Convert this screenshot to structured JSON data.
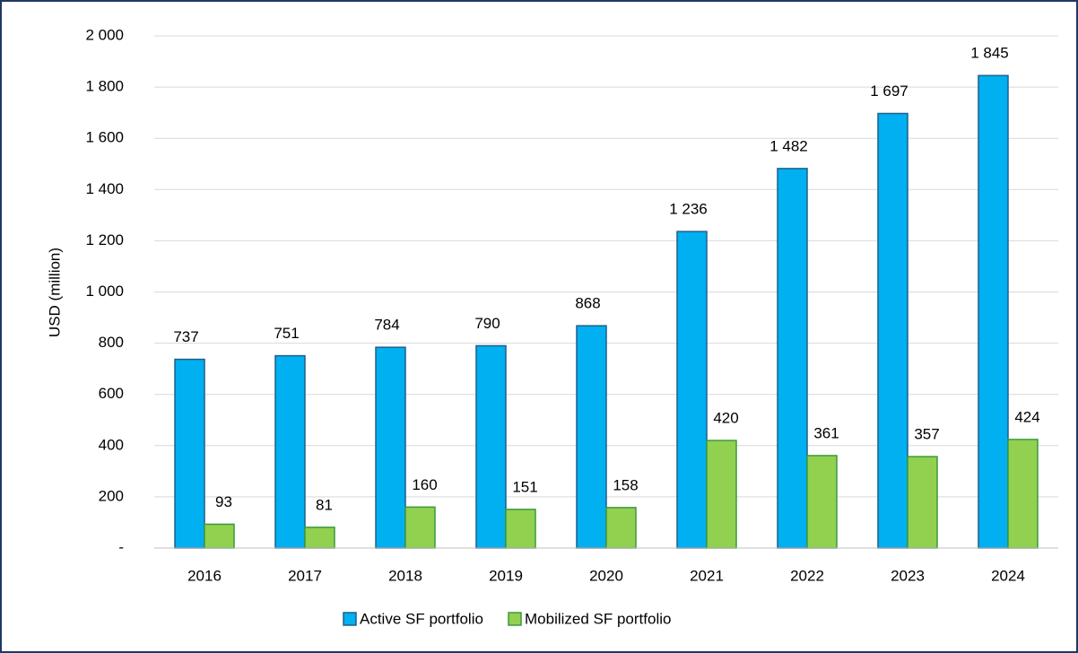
{
  "chart_data": {
    "type": "bar",
    "y_label": "USD (million)",
    "categories": [
      "2016",
      "2017",
      "2018",
      "2019",
      "2020",
      "2021",
      "2022",
      "2023",
      "2024"
    ],
    "series": [
      {
        "name": "Active SF portfolio",
        "color": "#00b0f0",
        "values": [
          737,
          751,
          784,
          790,
          868,
          1236,
          1482,
          1697,
          1845
        ],
        "value_labels": [
          "737",
          "751",
          "784",
          "790",
          "868",
          "1 236",
          "1 482",
          "1 697",
          "1 845"
        ]
      },
      {
        "name": "Mobilized SF portfolio",
        "color": "#92d050",
        "values": [
          93,
          81,
          160,
          151,
          158,
          420,
          361,
          357,
          424
        ]
      }
    ],
    "ylim": [
      0,
      2000
    ],
    "yticks": [
      {
        "value": 0,
        "label": "-"
      },
      200,
      400,
      600,
      800,
      {
        "value": 1000,
        "label": "1 000"
      },
      {
        "value": 1200,
        "label": "1 200"
      },
      {
        "value": 1400,
        "label": "1 400"
      },
      {
        "value": 1600,
        "label": "1 600"
      },
      {
        "value": 1800,
        "label": "1 800"
      },
      {
        "value": 2000,
        "label": "2 000"
      }
    ],
    "grid": true,
    "legend": "bottom"
  }
}
